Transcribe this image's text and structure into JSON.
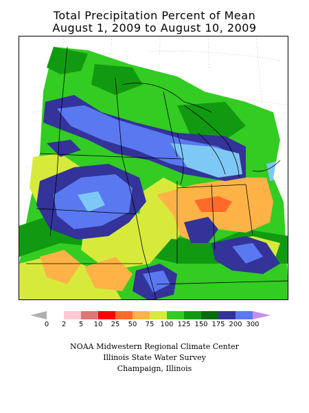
{
  "title": {
    "line1": "Total Precipitation Percent of Mean",
    "line2": "August 1, 2009 to August 10, 2009"
  },
  "legend": {
    "bins": [
      {
        "label": "0",
        "color": "#ffffff"
      },
      {
        "label": "2",
        "color": "#ffc8d2"
      },
      {
        "label": "5",
        "color": "#dc7878"
      },
      {
        "label": "10",
        "color": "#ff0000"
      },
      {
        "label": "25",
        "color": "#ff6a2a"
      },
      {
        "label": "50",
        "color": "#ffb347"
      },
      {
        "label": "75",
        "color": "#d7ea3c"
      },
      {
        "label": "100",
        "color": "#33cc22"
      },
      {
        "label": "125",
        "color": "#119a11"
      },
      {
        "label": "150",
        "color": "#0a6b0a"
      },
      {
        "label": "175",
        "color": "#333399"
      },
      {
        "label": "200",
        "color": "#5a78f0"
      },
      {
        "label": "300",
        "color": "#7ec8f5"
      }
    ],
    "below_color": "#b0b0b0",
    "above_color": "#c78ee6"
  },
  "credits": {
    "line1": "NOAA Midwestern Regional Climate Center",
    "line2": "Illinois State Water Survey",
    "line3": "Champaign, Illinois"
  }
}
